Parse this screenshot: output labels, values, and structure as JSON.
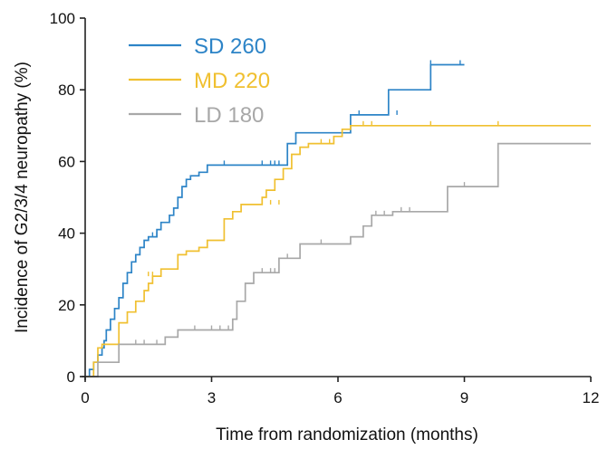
{
  "chart_data": {
    "type": "line",
    "subtype": "kaplan-meier step curves",
    "xlabel": "Time from randomization (months)",
    "ylabel": "Incidence of G2/3/4 neuropathy (%)",
    "xlim": [
      0,
      12
    ],
    "ylim": [
      0,
      100
    ],
    "xticks": [
      0,
      3,
      6,
      9,
      12
    ],
    "yticks": [
      0,
      20,
      40,
      60,
      80,
      100
    ],
    "grid": false,
    "legend_position": "top-left",
    "series": [
      {
        "name": "SD 260",
        "color": "#2d84c7",
        "x": [
          0,
          0.1,
          0.1,
          0.2,
          0.2,
          0.3,
          0.3,
          0.4,
          0.4,
          0.45,
          0.45,
          0.5,
          0.5,
          0.6,
          0.6,
          0.7,
          0.7,
          0.8,
          0.8,
          0.9,
          0.9,
          1.0,
          1.0,
          1.1,
          1.1,
          1.2,
          1.2,
          1.3,
          1.3,
          1.4,
          1.4,
          1.5,
          1.5,
          1.7,
          1.7,
          1.8,
          1.8,
          2.0,
          2.0,
          2.1,
          2.1,
          2.2,
          2.2,
          2.3,
          2.3,
          2.4,
          2.4,
          2.5,
          2.5,
          2.7,
          2.7,
          2.9,
          2.9,
          3.0,
          3.0,
          3.2,
          3.2,
          4.8,
          4.8,
          5.0,
          5.0,
          6.3,
          6.3,
          6.5,
          6.5,
          7.2,
          7.2,
          7.7,
          7.7,
          8.2,
          8.2,
          9.0
        ],
        "y": [
          0,
          0,
          2,
          2,
          4,
          4,
          6,
          6,
          8,
          8,
          10,
          10,
          13,
          13,
          16,
          16,
          19,
          19,
          22,
          22,
          26,
          26,
          29,
          29,
          32,
          32,
          34,
          34,
          36,
          36,
          38,
          38,
          39,
          39,
          41,
          41,
          43,
          43,
          45,
          45,
          47,
          47,
          50,
          50,
          53,
          53,
          55,
          55,
          56,
          56,
          57,
          57,
          59,
          59,
          59,
          59,
          59,
          59,
          65,
          65,
          68,
          68,
          73,
          73,
          73,
          73,
          80,
          80,
          80,
          80,
          87,
          87
        ],
        "censor_x": [
          1.6,
          1.7,
          3.3,
          4.2,
          4.4,
          4.5,
          4.6,
          6.5,
          7.4,
          8.2,
          8.9
        ],
        "censor_y": [
          39,
          39,
          59,
          59,
          59,
          59,
          59,
          73,
          73,
          87,
          87
        ]
      },
      {
        "name": "MD 220",
        "color": "#f0c030",
        "x": [
          0,
          0.2,
          0.2,
          0.3,
          0.3,
          0.4,
          0.4,
          0.8,
          0.8,
          1.0,
          1.0,
          1.2,
          1.2,
          1.4,
          1.4,
          1.5,
          1.5,
          1.6,
          1.6,
          1.8,
          1.8,
          2.2,
          2.2,
          2.4,
          2.4,
          2.7,
          2.7,
          2.9,
          2.9,
          3.3,
          3.3,
          3.5,
          3.5,
          3.7,
          3.7,
          4.2,
          4.2,
          4.3,
          4.3,
          4.5,
          4.5,
          4.7,
          4.7,
          4.9,
          4.9,
          5.1,
          5.1,
          5.3,
          5.3,
          5.9,
          5.9,
          6.1,
          6.1,
          6.3,
          6.3,
          12
        ],
        "y": [
          0,
          0,
          4,
          4,
          8,
          8,
          9,
          9,
          15,
          15,
          18,
          18,
          21,
          21,
          24,
          24,
          26,
          26,
          28,
          28,
          30,
          30,
          34,
          34,
          35,
          35,
          36,
          36,
          38,
          38,
          44,
          44,
          46,
          46,
          48,
          48,
          50,
          50,
          52,
          52,
          55,
          55,
          58,
          58,
          62,
          62,
          64,
          64,
          65,
          65,
          67,
          67,
          69,
          69,
          70,
          70
        ],
        "censor_x": [
          1.5,
          1.6,
          4.4,
          4.6,
          5.6,
          5.8,
          6.6,
          6.8,
          8.2,
          9.8
        ],
        "censor_y": [
          28,
          28,
          48,
          48,
          65,
          65,
          70,
          70,
          70,
          70
        ]
      },
      {
        "name": "LD 180",
        "color": "#a8a8a8",
        "x": [
          0,
          0.3,
          0.3,
          0.8,
          0.8,
          1.9,
          1.9,
          2.2,
          2.2,
          3.5,
          3.5,
          3.6,
          3.6,
          3.8,
          3.8,
          4.0,
          4.0,
          4.6,
          4.6,
          5.1,
          5.1,
          6.3,
          6.3,
          6.6,
          6.6,
          6.8,
          6.8,
          7.3,
          7.3,
          8.6,
          8.6,
          9.8,
          9.8,
          12
        ],
        "y": [
          0,
          0,
          4,
          4,
          9,
          9,
          11,
          11,
          13,
          13,
          16,
          16,
          21,
          21,
          26,
          26,
          29,
          29,
          33,
          33,
          37,
          37,
          39,
          39,
          42,
          42,
          45,
          45,
          46,
          46,
          53,
          53,
          65,
          65
        ],
        "censor_x": [
          1.2,
          1.4,
          1.7,
          2.6,
          3.0,
          3.2,
          3.4,
          4.2,
          4.4,
          4.5,
          4.8,
          5.6,
          6.9,
          7.1,
          7.5,
          7.7,
          9.0
        ],
        "censor_y": [
          9,
          9,
          9,
          13,
          13,
          13,
          13,
          29,
          29,
          29,
          33,
          37,
          45,
          45,
          46,
          46,
          53
        ]
      }
    ]
  }
}
